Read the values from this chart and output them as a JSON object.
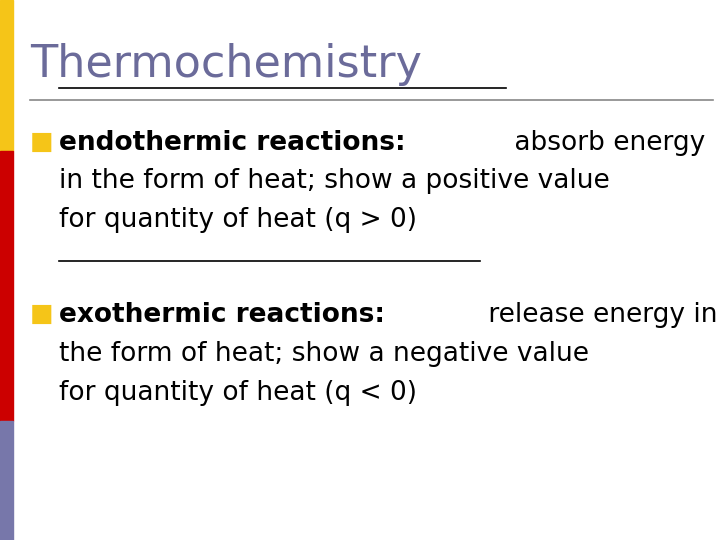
{
  "title": "Thermochemistry",
  "title_color": "#6b6b9a",
  "title_fontsize": 32,
  "bg_color": "#ffffff",
  "sidebar_colors": [
    "#f5c518",
    "#cc0000",
    "#7777aa"
  ],
  "hr_color": "#888888",
  "bullet_color": "#f5c518",
  "bullet_char": "■",
  "text_fontsize": 19,
  "bullet1_bold": "endothermic reactions:",
  "bullet1_rest_line1": " absorb energy",
  "bullet1_rest_line2": "in the form of heat; show a positive value",
  "bullet1_rest_line3": "for quantity of heat (q > 0)",
  "bullet2_bold": "exothermic reactions:",
  "bullet2_rest_line1": " release energy in",
  "bullet2_rest_line2": "the form of heat; show a negative value",
  "bullet2_rest_line3": "for quantity of heat (q < 0)"
}
